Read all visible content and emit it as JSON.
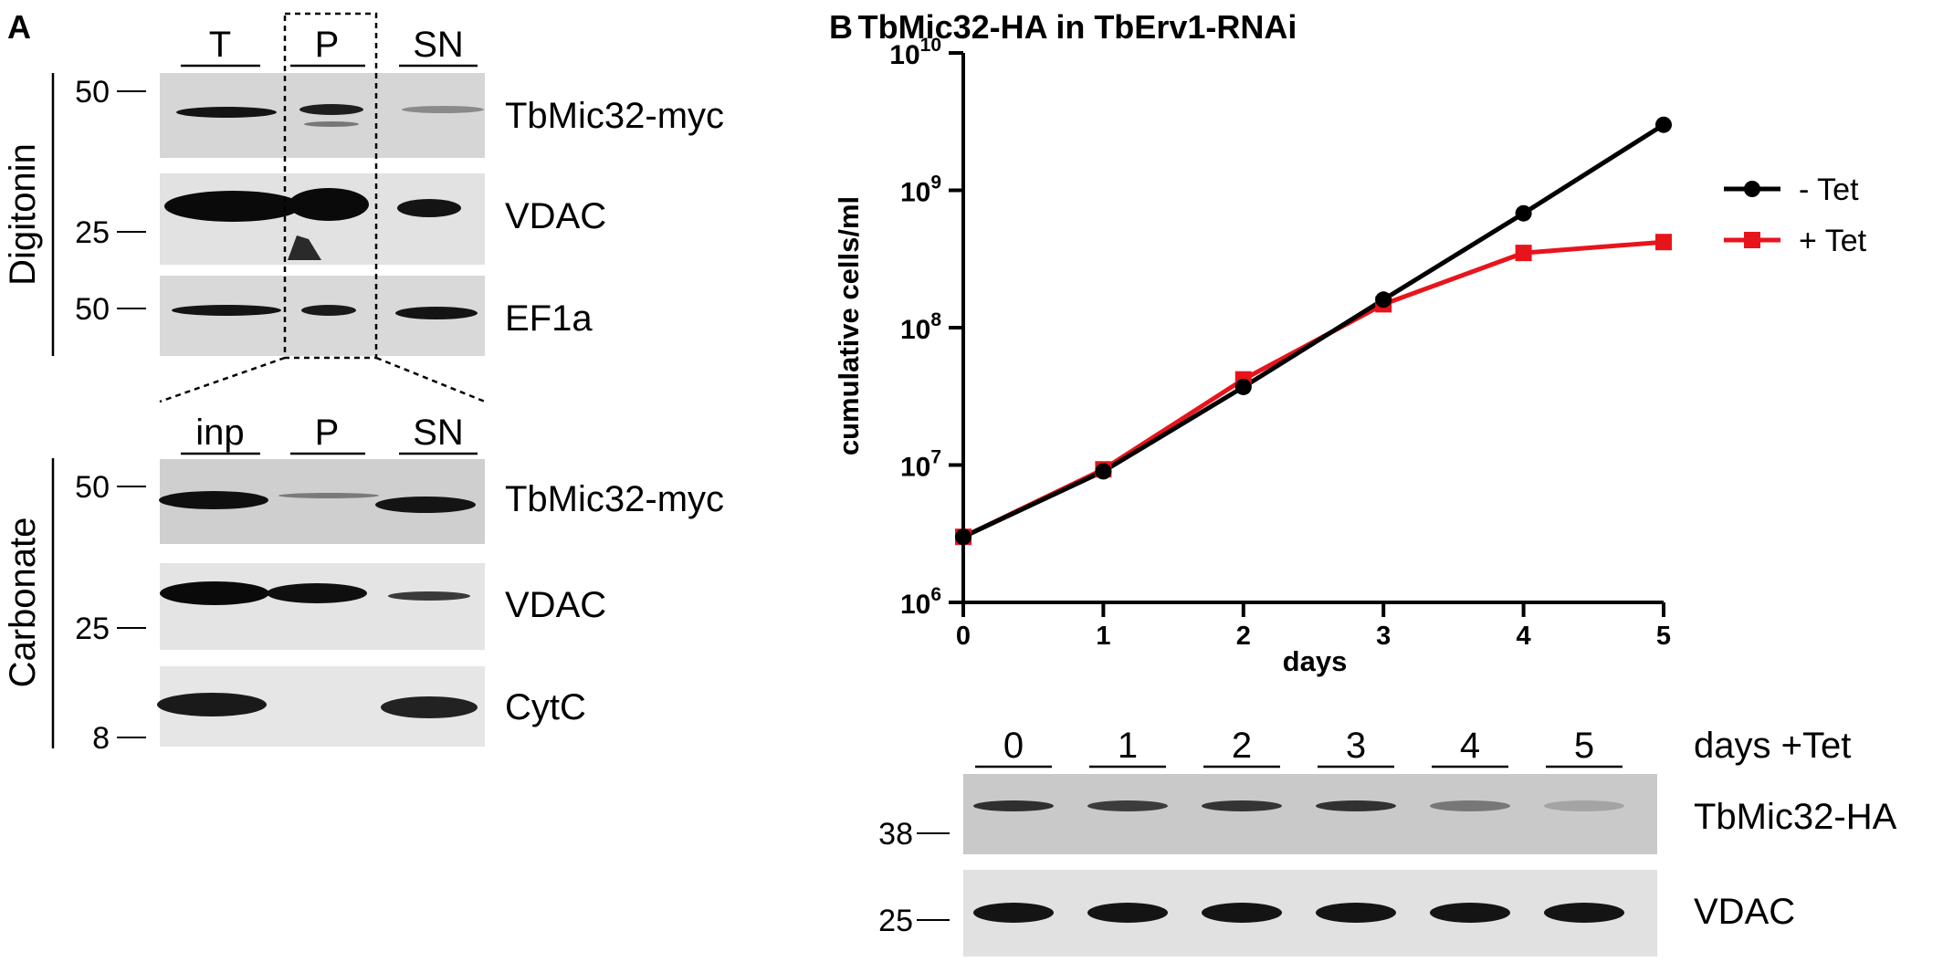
{
  "panel_a": {
    "letter": "A",
    "digitonin": {
      "section_label": "Digitonin",
      "lanes": [
        "T",
        "P",
        "SN"
      ],
      "blots": [
        {
          "label": "TbMic32-myc",
          "marker": "50"
        },
        {
          "label": "VDAC",
          "marker": "25"
        },
        {
          "label": "EF1a",
          "marker": "50"
        }
      ]
    },
    "carbonate": {
      "section_label": "Carbonate",
      "lanes": [
        "inp",
        "P",
        "SN"
      ],
      "blots": [
        {
          "label": "TbMic32-myc",
          "marker": "50"
        },
        {
          "label": "VDAC",
          "marker": "25"
        },
        {
          "label": "CytC",
          "marker": "8"
        }
      ]
    }
  },
  "panel_b": {
    "letter": "B",
    "western": {
      "header": "days +Tet",
      "lanes": [
        "0",
        "1",
        "2",
        "3",
        "4",
        "5"
      ],
      "blots": [
        {
          "label": "TbMic32-HA",
          "marker": "38",
          "intensity": [
            0.85,
            0.78,
            0.82,
            0.84,
            0.45,
            0.2
          ]
        },
        {
          "label": "VDAC",
          "marker": "25",
          "intensity": [
            1,
            1,
            1,
            1,
            1,
            1
          ]
        }
      ]
    }
  },
  "chart_data": {
    "type": "line",
    "title": "TbMic32-HA in TbErv1-RNAi",
    "xlabel": "days",
    "ylabel": "cumulative cells/ml",
    "yscale": "log",
    "xlim": [
      0,
      5
    ],
    "ylim": [
      1000000,
      10000000000
    ],
    "x_ticks": [
      "0",
      "1",
      "2",
      "3",
      "4",
      "5"
    ],
    "y_ticks": [
      {
        "base": "10",
        "exp": "6"
      },
      {
        "base": "10",
        "exp": "7"
      },
      {
        "base": "10",
        "exp": "8"
      },
      {
        "base": "10",
        "exp": "9"
      },
      {
        "base": "10",
        "exp": "10"
      }
    ],
    "grid": false,
    "legend_position": "right",
    "x": [
      0,
      1,
      2,
      3,
      4,
      5
    ],
    "series": [
      {
        "name": "- Tet",
        "color": "#000000",
        "marker": "circle",
        "values": [
          3000000,
          9000000,
          37000000,
          160000000,
          680000000,
          3000000000
        ]
      },
      {
        "name": "+ Tet",
        "color": "#e8141c",
        "marker": "square",
        "values": [
          3000000,
          9300000,
          42000000,
          148000000,
          350000000,
          420000000
        ]
      }
    ]
  }
}
